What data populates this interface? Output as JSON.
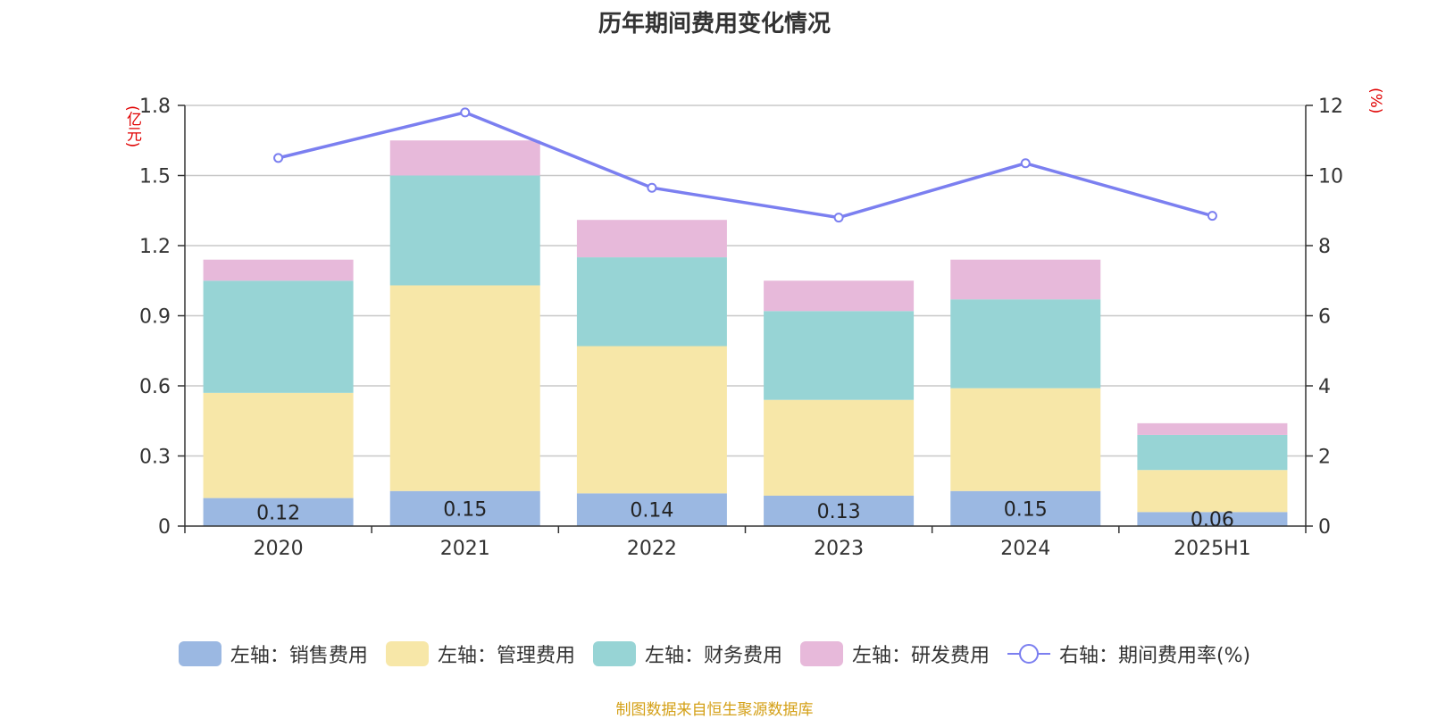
{
  "title": "历年期间费用变化情况",
  "source": "制图数据来自恒生聚源数据库",
  "y_left_unit": "(亿元)",
  "y_right_unit": "(%)",
  "legend": [
    {
      "label": "左轴：销售费用",
      "color": "#9bb8e2",
      "kind": "bar"
    },
    {
      "label": "左轴：管理费用",
      "color": "#f7e7a8",
      "kind": "bar"
    },
    {
      "label": "左轴：财务费用",
      "color": "#97d4d5",
      "kind": "bar"
    },
    {
      "label": "左轴：研发费用",
      "color": "#e7b9da",
      "kind": "bar"
    },
    {
      "label": "右轴：期间费用率(%)",
      "color": "#7b7ff0",
      "kind": "line"
    }
  ],
  "chart_data": {
    "type": "bar",
    "stacked": true,
    "categories": [
      "2020",
      "2021",
      "2022",
      "2023",
      "2024",
      "2025H1"
    ],
    "series": [
      {
        "name": "左轴：销售费用",
        "axis": "left",
        "color": "#9bb8e2",
        "values": [
          0.12,
          0.15,
          0.14,
          0.13,
          0.15,
          0.06
        ],
        "labels": [
          "0.12",
          "0.15",
          "0.14",
          "0.13",
          "0.15",
          "0.06"
        ]
      },
      {
        "name": "左轴：管理费用",
        "axis": "left",
        "color": "#f7e7a8",
        "values": [
          0.45,
          0.88,
          0.63,
          0.41,
          0.44,
          0.18
        ]
      },
      {
        "name": "左轴：财务费用",
        "axis": "left",
        "color": "#97d4d5",
        "values": [
          0.48,
          0.47,
          0.38,
          0.38,
          0.38,
          0.15
        ]
      },
      {
        "name": "左轴：研发费用",
        "axis": "left",
        "color": "#e7b9da",
        "values": [
          0.09,
          0.15,
          0.16,
          0.13,
          0.17,
          0.05
        ]
      },
      {
        "name": "右轴：期间费用率(%)",
        "axis": "right",
        "type": "line",
        "color": "#7b7ff0",
        "values": [
          10.5,
          11.8,
          9.65,
          8.8,
          10.35,
          8.85
        ]
      }
    ],
    "y_left": {
      "min": 0,
      "max": 1.8,
      "ticks": [
        "0",
        "0.3",
        "0.6",
        "0.9",
        "1.2",
        "1.5",
        "1.8"
      ]
    },
    "y_right": {
      "min": 0,
      "max": 12,
      "ticks": [
        "0",
        "2",
        "4",
        "6",
        "8",
        "10",
        "12"
      ]
    },
    "grid": true,
    "legend_position": "bottom"
  }
}
